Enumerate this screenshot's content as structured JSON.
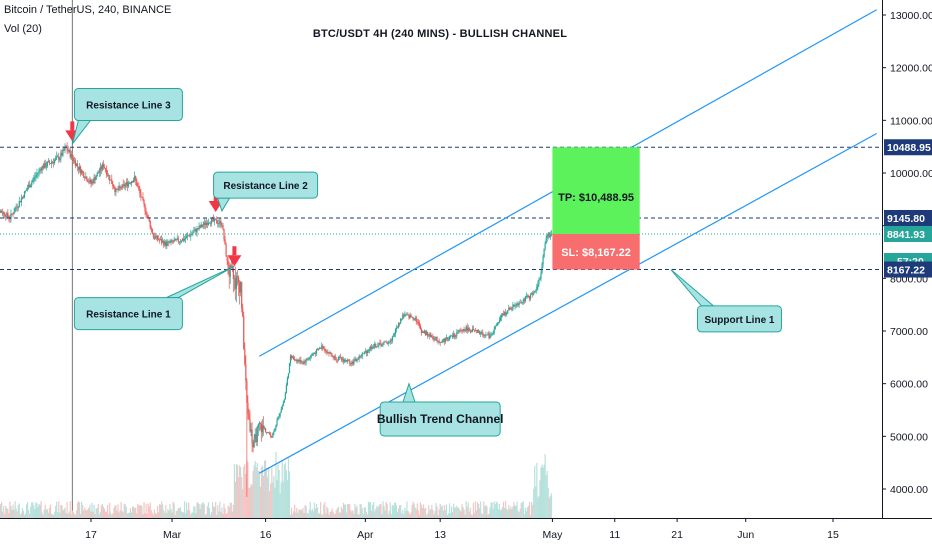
{
  "header": {
    "symbol_line": "Bitcoin / TetherUS, 240, BINANCE",
    "volume_line": "Vol (20)"
  },
  "chart_title": "BTC/USDT 4H (240 MINS) - BULLISH CHANNEL",
  "colors": {
    "up": "#26a69a",
    "down": "#ef5350",
    "channel": "#2196f3",
    "level_line": "#1e3a78",
    "last_price": "#26a69a",
    "tp_box": "#5cf25c",
    "sl_box": "#f86d6d",
    "callout_fill": "#a7e3e3",
    "callout_border": "#26a69a",
    "arrow": "#f23645"
  },
  "chart_data": {
    "type": "candlestick",
    "y_axis": {
      "min": 3500,
      "max": 13300,
      "ticks": [
        4000,
        5000,
        6000,
        7000,
        8000,
        9000,
        10000,
        11000,
        12000,
        13000
      ],
      "tick_labels": [
        "4000.00",
        "5000.00",
        "6000.00",
        "7000.00",
        "8000.00",
        "9000.00",
        "10000.00",
        "11000.00",
        "12000.00",
        "13000.00"
      ]
    },
    "x_axis": {
      "tick_labels": [
        "17",
        "Mar",
        "16",
        "Apr",
        "13",
        "May",
        "11",
        "21",
        "Jun",
        "15"
      ],
      "tick_dates": [
        "2020-02-17",
        "2020-03-01",
        "2020-03-16",
        "2020-04-01",
        "2020-04-13",
        "2020-05-01",
        "2020-05-11",
        "2020-05-21",
        "2020-06-01",
        "2020-06-15"
      ]
    },
    "price_path": [
      [
        "2020-02-01",
        9400
      ],
      [
        "2020-02-04",
        9150
      ],
      [
        "2020-02-07",
        9750
      ],
      [
        "2020-02-09",
        10100
      ],
      [
        "2020-02-12",
        10300
      ],
      [
        "2020-02-13",
        10480
      ],
      [
        "2020-02-15",
        10100
      ],
      [
        "2020-02-17",
        9800
      ],
      [
        "2020-02-19",
        10150
      ],
      [
        "2020-02-21",
        9650
      ],
      [
        "2020-02-24",
        9900
      ],
      [
        "2020-02-26",
        9200
      ],
      [
        "2020-02-27",
        8800
      ],
      [
        "2020-02-29",
        8650
      ],
      [
        "2020-03-03",
        8750
      ],
      [
        "2020-03-07",
        9100
      ],
      [
        "2020-03-09",
        9050
      ],
      [
        "2020-03-10",
        8150
      ],
      [
        "2020-03-11",
        7950
      ],
      [
        "2020-03-12",
        7900
      ],
      [
        "2020-03-13",
        5600
      ],
      [
        "2020-03-14",
        4800
      ],
      [
        "2020-03-15",
        5200
      ],
      [
        "2020-03-17",
        5000
      ],
      [
        "2020-03-19",
        5700
      ],
      [
        "2020-03-20",
        6500
      ],
      [
        "2020-03-22",
        6400
      ],
      [
        "2020-03-25",
        6700
      ],
      [
        "2020-03-27",
        6500
      ],
      [
        "2020-03-30",
        6400
      ],
      [
        "2020-04-02",
        6700
      ],
      [
        "2020-04-05",
        6800
      ],
      [
        "2020-04-07",
        7300
      ],
      [
        "2020-04-09",
        7250
      ],
      [
        "2020-04-10",
        7000
      ],
      [
        "2020-04-13",
        6800
      ],
      [
        "2020-04-15",
        6900
      ],
      [
        "2020-04-17",
        7050
      ],
      [
        "2020-04-21",
        6900
      ],
      [
        "2020-04-23",
        7300
      ],
      [
        "2020-04-25",
        7500
      ],
      [
        "2020-04-28",
        7700
      ],
      [
        "2020-04-29",
        8000
      ],
      [
        "2020-04-30",
        8800
      ],
      [
        "2020-05-01",
        8842
      ]
    ],
    "x_start": "2020-02-01",
    "x_end": "2020-06-22",
    "horizontal_levels": [
      {
        "label": "10488.95",
        "value": 10488.95
      },
      {
        "label": "9145.80",
        "value": 9145.8
      },
      {
        "label": "8167.22",
        "value": 8167.22
      }
    ],
    "current_price": {
      "label": "8841.93",
      "value": 8841.93,
      "countdown": "57:20"
    },
    "channel": {
      "upper": [
        [
          "2020-03-15",
          6520
        ],
        [
          "2020-06-22",
          13100
        ]
      ],
      "lower": [
        [
          "2020-03-15",
          4300
        ],
        [
          "2020-06-22",
          10750
        ]
      ]
    },
    "position": {
      "from": "2020-05-01",
      "to": "2020-05-15",
      "entry": 8841.93,
      "take_profit": 10488.95,
      "stop_loss": 8167.22,
      "tp_label": "TP: $10,488.95",
      "sl_label": "SL: $8,167.22"
    },
    "annotations": [
      {
        "text": "Resistance Line 3",
        "date": "2020-02-23",
        "price": 11300,
        "w": 108,
        "h": 32,
        "target": [
          "2020-02-14",
          10550
        ]
      },
      {
        "text": "Resistance Line 2",
        "date": "2020-03-16",
        "price": 9770,
        "w": 104,
        "h": 26,
        "target": [
          "2020-03-09",
          9280
        ]
      },
      {
        "text": "Resistance Line 1",
        "date": "2020-02-23",
        "price": 7330,
        "w": 108,
        "h": 32,
        "target": [
          "2020-03-11",
          8230
        ]
      },
      {
        "text": "Support Line 1",
        "date": "2020-05-31",
        "price": 7230,
        "w": 84,
        "h": 26,
        "target": [
          "2020-05-20",
          8167
        ]
      },
      {
        "text": "Bullish Trend Channel",
        "date": "2020-04-13",
        "price": 5330,
        "w": 120,
        "h": 34,
        "target": [
          "2020-04-08",
          6000
        ]
      }
    ],
    "down_arrows": [
      [
        "2020-02-14",
        10600
      ],
      [
        "2020-03-08",
        9260
      ],
      [
        "2020-03-11",
        8230
      ]
    ],
    "vertical_marker": "2020-02-14"
  }
}
